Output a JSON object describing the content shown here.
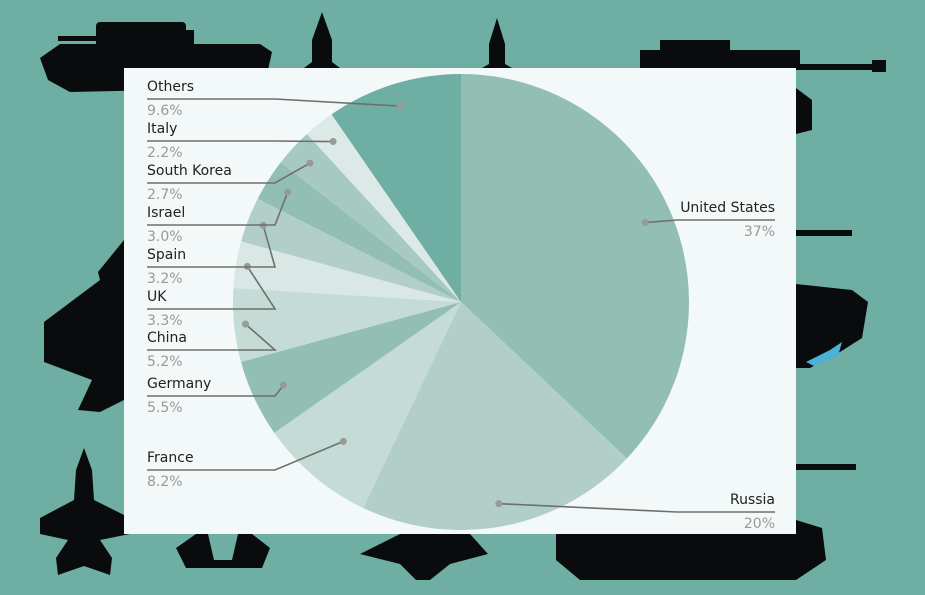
{
  "colors": {
    "background": "#6eaea3",
    "panel": "#f3f8f8",
    "silhouette": "#0a0b0c",
    "water": "#4db0d8",
    "leader_line": "#6f6f6f",
    "leader_dot": "#999999"
  },
  "background_icons": [
    "tank-icon",
    "missile-icon",
    "missile-icon",
    "tank-icon",
    "fighter-jet-icon",
    "ship-icon",
    "fighter-jet-icon",
    "fighter-jet-icon",
    "fighter-jet-icon",
    "tank-icon"
  ],
  "chart_data": {
    "type": "pie",
    "start_angle_deg": 0,
    "direction": "clockwise",
    "slices": [
      {
        "label": "United States",
        "value_label": "37%",
        "value": 37,
        "color": "#93beb4"
      },
      {
        "label": "Russia",
        "value_label": "20%",
        "value": 20,
        "color": "#b1cfc8"
      },
      {
        "label": "France",
        "value_label": "8.2%",
        "value": 8.2,
        "color": "#c4dbd6"
      },
      {
        "label": "Germany",
        "value_label": "5.5%",
        "value": 5.5,
        "color": "#93beb4"
      },
      {
        "label": "China",
        "value_label": "5.2%",
        "value": 5.2,
        "color": "#c4dbd6"
      },
      {
        "label": "UK",
        "value_label": "3.3%",
        "value": 3.3,
        "color": "#d9e8e5"
      },
      {
        "label": "Spain",
        "value_label": "3.2%",
        "value": 3.2,
        "color": "#b1cfc8"
      },
      {
        "label": "Israel",
        "value_label": "3.0%",
        "value": 3.0,
        "color": "#93beb4"
      },
      {
        "label": "South Korea",
        "value_label": "2.7%",
        "value": 2.7,
        "color": "#a6c9c1"
      },
      {
        "label": "Italy",
        "value_label": "2.2%",
        "value": 2.2,
        "color": "#dce9e6"
      },
      {
        "label": "Others",
        "value_label": "9.6%",
        "value": 9.6,
        "color": "#6eaea3"
      }
    ]
  }
}
